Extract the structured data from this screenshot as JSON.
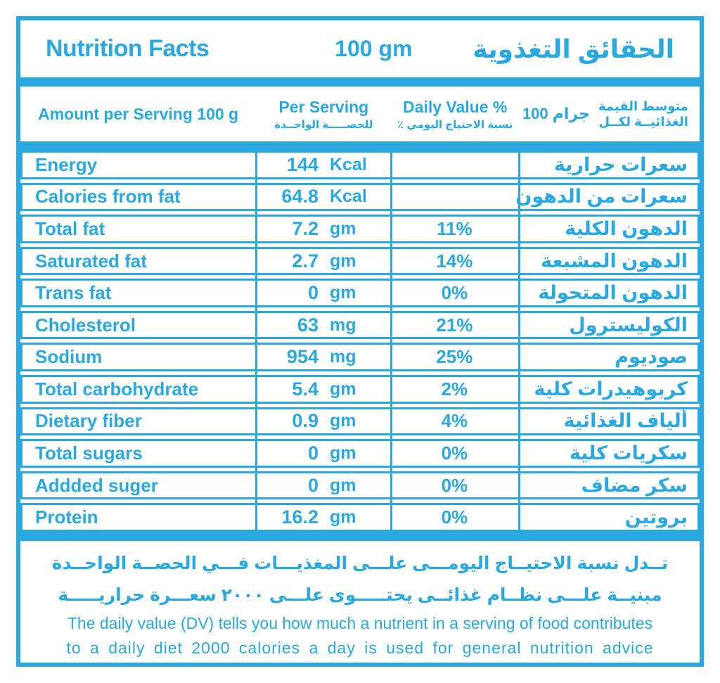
{
  "accent_color": "#29A9E0",
  "header": {
    "title_en": "Nutrition Facts",
    "serving_size": "100 gm",
    "title_ar": "الحقائق التغذوية"
  },
  "column_headers": {
    "amount_en": "Amount per Serving 100 g",
    "per_serving_en": "Per Serving",
    "per_serving_ar": "للحصـــــة الواحــدة",
    "daily_value_en": "Daily Value %",
    "daily_value_ar": "نسبة الاحتياج اليومي ٪",
    "per_100_ar_line1": "متوسط القيمة",
    "per_100_ar_line2": "الغذائيــة لكــل",
    "per_100_amount": "100 جرام"
  },
  "rows": [
    {
      "en": "Energy",
      "value": "144",
      "unit": "Kcal",
      "dv": "",
      "ar": "سعرات حرارية"
    },
    {
      "en": "Calories from fat",
      "value": "64.8",
      "unit": "Kcal",
      "dv": "",
      "ar": "سعرات من الدهون"
    },
    {
      "en": "Total fat",
      "value": "7.2",
      "unit": "gm",
      "dv": "11%",
      "ar": "الدهون الكلية"
    },
    {
      "en": "Saturated fat",
      "value": "2.7",
      "unit": "gm",
      "dv": "14%",
      "ar": "الدهون المشبعة"
    },
    {
      "en": "Trans fat",
      "value": "0",
      "unit": "gm",
      "dv": "0%",
      "ar": "الدهون المتحولة"
    },
    {
      "en": "Cholesterol",
      "value": "63",
      "unit": "mg",
      "dv": "21%",
      "ar": "الكوليسترول"
    },
    {
      "en": "Sodium",
      "value": "954",
      "unit": "mg",
      "dv": "25%",
      "ar": "صوديوم"
    },
    {
      "en": "Total carbohydrate",
      "value": "5.4",
      "unit": "gm",
      "dv": "2%",
      "ar": "كربوهيدرات كلية"
    },
    {
      "en": "Dietary fiber",
      "value": "0.9",
      "unit": "gm",
      "dv": "4%",
      "ar": "ألياف الغذائية"
    },
    {
      "en": "Total sugars",
      "value": "0",
      "unit": "gm",
      "dv": "0%",
      "ar": "سكريات كلية"
    },
    {
      "en": "Addded suger",
      "value": "0",
      "unit": "gm",
      "dv": "0%",
      "ar": "سكر مضاف"
    },
    {
      "en": "Protein",
      "value": "16.2",
      "unit": "gm",
      "dv": "0%",
      "ar": "بروتين"
    }
  ],
  "footer": {
    "ar_line1": "تــدل نسبة الاحتيــاج اليومـــى علـــى المغذيـــات فـــي الحصــة الواحــدة",
    "ar_line2": "مبنيــة علـــى نظــام غذائــى يحتـــــوى علـــى ٢٠٠٠ سعـــرة حراريـــــة",
    "en_line1": "The daily value (DV) tells you how much a nutrient in a serving of food contributes",
    "en_line2": "to a daily diet 2000 calories a day is used for general nutrition advice"
  }
}
